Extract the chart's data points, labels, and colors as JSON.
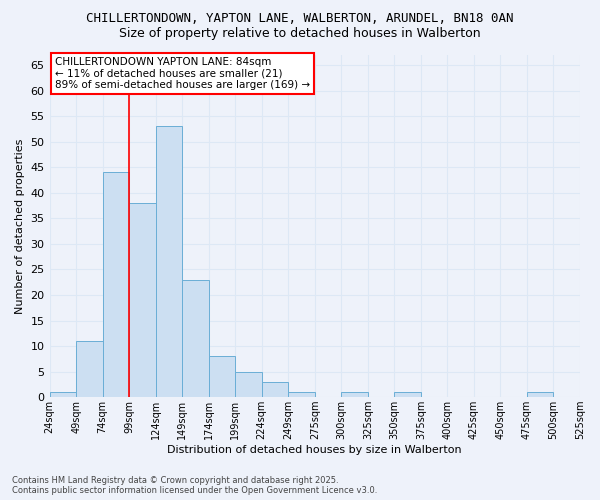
{
  "title_line1": "CHILLERTONDOWN, YAPTON LANE, WALBERTON, ARUNDEL, BN18 0AN",
  "title_line2": "Size of property relative to detached houses in Walberton",
  "xlabel": "Distribution of detached houses by size in Walberton",
  "ylabel": "Number of detached properties",
  "bar_values": [
    1,
    11,
    44,
    38,
    53,
    23,
    8,
    5,
    3,
    1,
    0,
    1,
    0,
    1,
    0,
    0,
    0,
    0,
    1
  ],
  "bin_labels": [
    "24sqm",
    "49sqm",
    "74sqm",
    "99sqm",
    "124sqm",
    "149sqm",
    "174sqm",
    "199sqm",
    "224sqm",
    "249sqm",
    "275sqm",
    "300sqm",
    "325sqm",
    "350sqm",
    "375sqm",
    "400sqm",
    "425sqm",
    "450sqm",
    "475sqm",
    "500sqm",
    "525sqm"
  ],
  "bar_color": "#ccdff2",
  "bar_edge_color": "#6aaed6",
  "grid_color": "#dde8f5",
  "background_color": "#eef2fa",
  "red_line_x": 2.5,
  "annotation_text": "CHILLERTONDOWN YAPTON LANE: 84sqm\n← 11% of detached houses are smaller (21)\n89% of semi-detached houses are larger (169) →",
  "annotation_box_color": "white",
  "annotation_box_edge": "red",
  "ylim": [
    0,
    67
  ],
  "yticks": [
    0,
    5,
    10,
    15,
    20,
    25,
    30,
    35,
    40,
    45,
    50,
    55,
    60,
    65
  ],
  "footer_line1": "Contains HM Land Registry data © Crown copyright and database right 2025.",
  "footer_line2": "Contains public sector information licensed under the Open Government Licence v3.0."
}
